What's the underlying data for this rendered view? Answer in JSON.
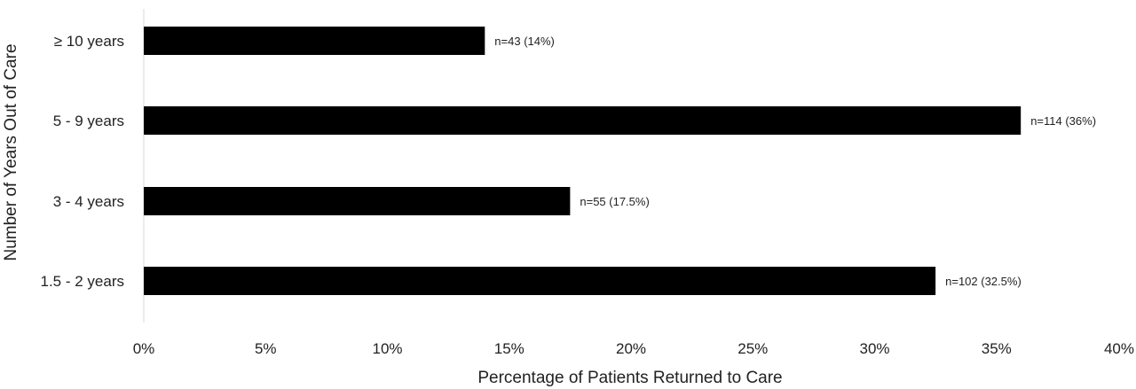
{
  "chart_data": {
    "type": "bar",
    "orientation": "horizontal",
    "categories": [
      "≥ 10 years",
      "5 - 9 years",
      "3 - 4 years",
      "1.5 - 2 years"
    ],
    "values": [
      14,
      36,
      17.5,
      32.5
    ],
    "data_labels": [
      "n=43 (14%)",
      "n=114 (36%)",
      "n=55 (17.5%)",
      "n=102 (32.5%)"
    ],
    "x_ticks": [
      "0%",
      "5%",
      "10%",
      "15%",
      "20%",
      "25%",
      "30%",
      "35%",
      "40%"
    ],
    "xlim": [
      0,
      40
    ],
    "xlabel": "Percentage of Patients Returned to Care",
    "ylabel": "Number of Years Out of Care",
    "grid": false,
    "legend": "none",
    "bar_color": "#000000"
  }
}
